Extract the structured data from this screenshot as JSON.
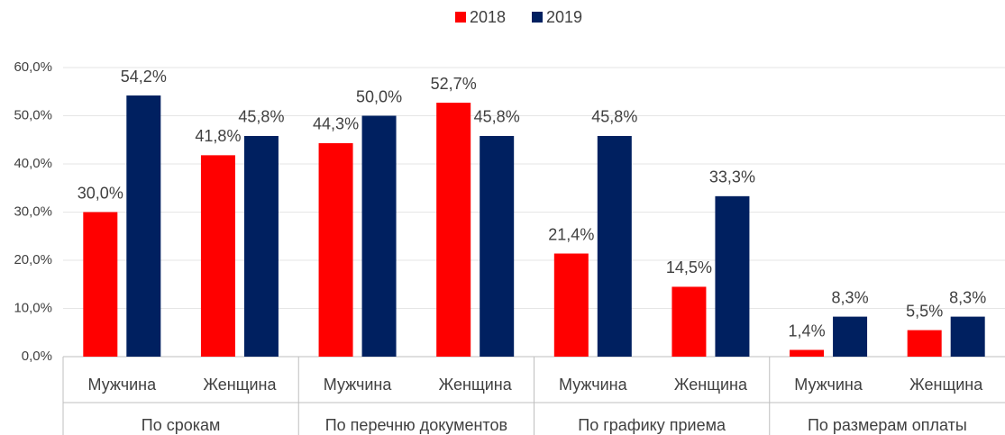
{
  "chart_data": {
    "type": "bar",
    "categories": [
      "Мужчина",
      "Женщина",
      "Мужчина",
      "Женщина",
      "Мужчина",
      "Женщина",
      "Мужчина",
      "Женщина"
    ],
    "category_groups": [
      "По срокам",
      "По перечню документов",
      "По графику приема",
      "По размерам оплаты"
    ],
    "series": [
      {
        "name": "2018",
        "color": "#ff0000",
        "values": [
          30.0,
          41.8,
          44.3,
          52.7,
          21.4,
          14.5,
          1.4,
          5.5
        ],
        "value_labels": [
          "30,0%",
          "41,8%",
          "44,3%",
          "52,7%",
          "21,4%",
          "14,5%",
          "1,4%",
          "5,5%"
        ]
      },
      {
        "name": "2019",
        "color": "#002060",
        "values": [
          54.2,
          45.8,
          50.0,
          45.8,
          45.8,
          33.3,
          8.3,
          8.3
        ],
        "value_labels": [
          "54,2%",
          "45,8%",
          "50,0%",
          "45,8%",
          "45,8%",
          "33,3%",
          "8,3%",
          "8,3%"
        ]
      }
    ],
    "ylim": [
      0,
      60
    ],
    "yticks": [
      {
        "value": 0,
        "label": "0,0%"
      },
      {
        "value": 10,
        "label": "10,0%"
      },
      {
        "value": 20,
        "label": "20,0%"
      },
      {
        "value": 30,
        "label": "30,0%"
      },
      {
        "value": 40,
        "label": "40,0%"
      },
      {
        "value": 50,
        "label": "50,0%"
      },
      {
        "value": 60,
        "label": "60,0%"
      }
    ],
    "grid": true,
    "legend": "top"
  }
}
